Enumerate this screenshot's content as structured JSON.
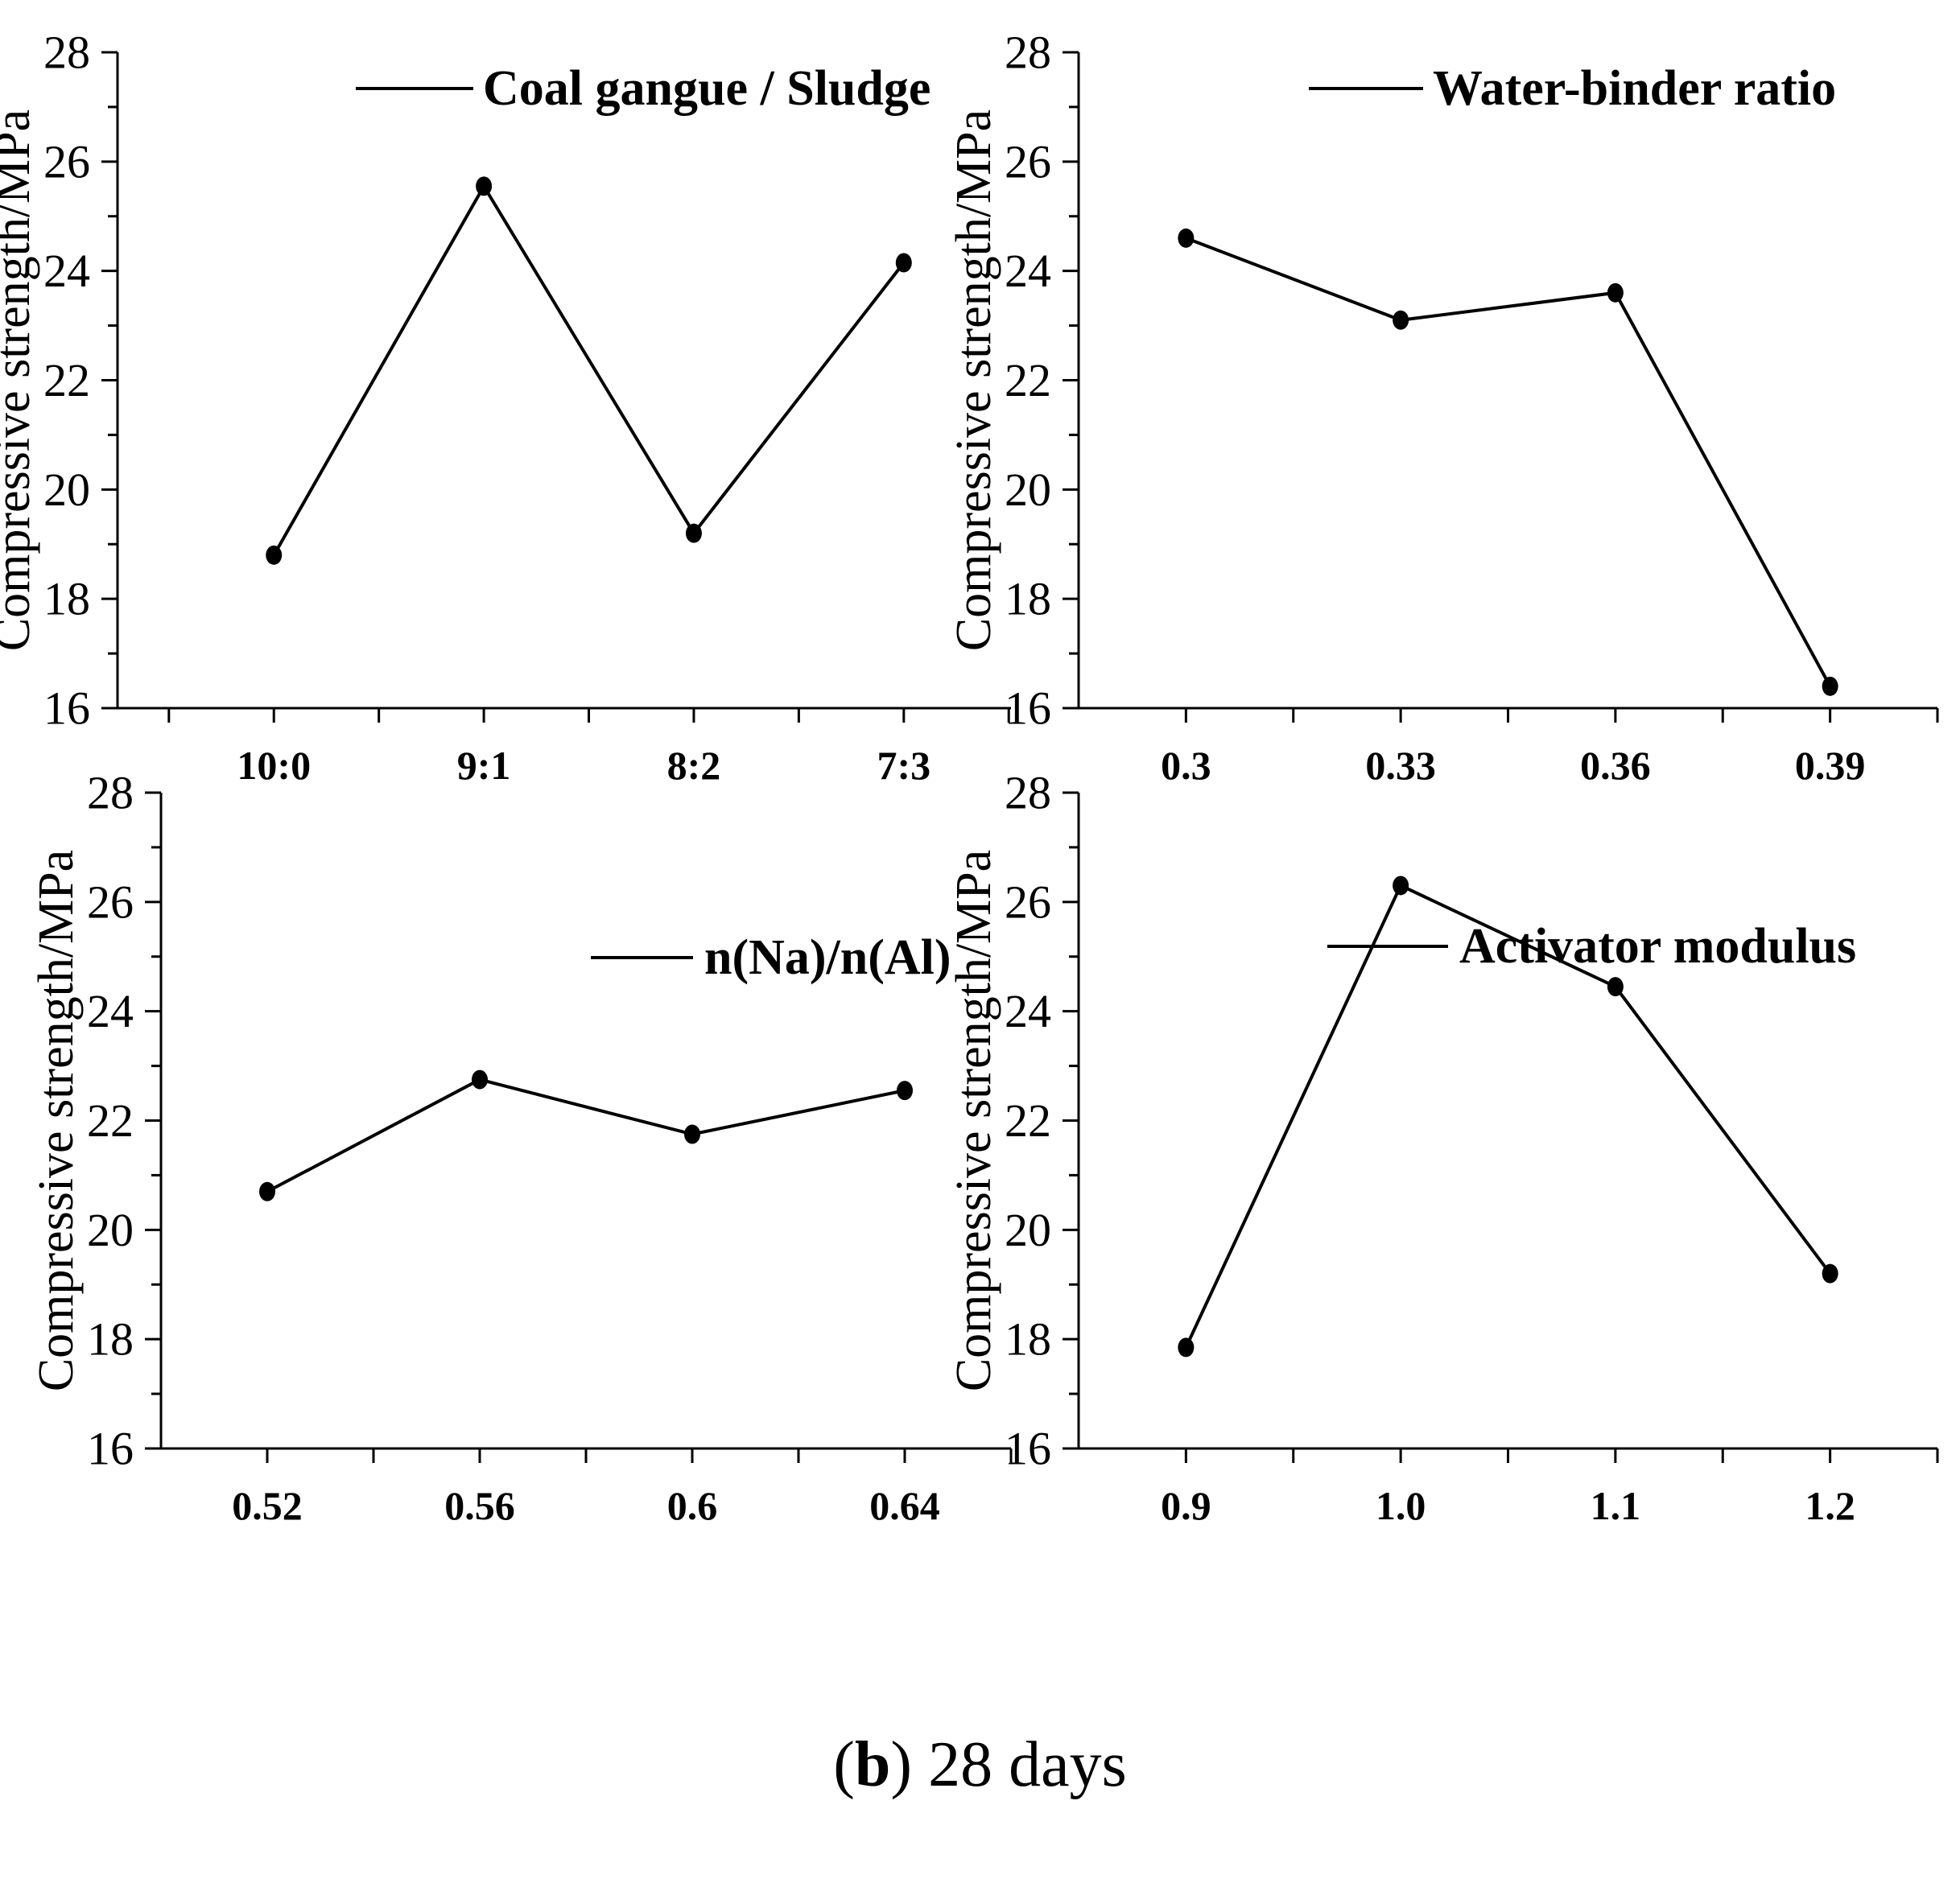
{
  "caption": {
    "prefix": "(",
    "bold": "b",
    "rest": ") 28 days"
  },
  "colors": {
    "foreground": "#000000",
    "background": "#ffffff"
  },
  "chart_data": [
    {
      "type": "line",
      "slug": "coal-gangue-sludge",
      "legend": "Coal gangue / Sludge",
      "categories": [
        "10:0",
        "9:1",
        "8:2",
        "7:3"
      ],
      "values": [
        18.8,
        25.55,
        19.2,
        24.15
      ],
      "ylabel": "Compressive strength/MPa",
      "ylim": [
        16,
        28
      ],
      "ytick_step": 2,
      "ytick_minor_step": 1,
      "legend_position": "inside-top",
      "marker": "filled-circle",
      "series_color": "#000000",
      "grid": false
    },
    {
      "type": "line",
      "slug": "water-binder-ratio",
      "legend": "Water-binder ratio",
      "categories": [
        "0.3",
        "0.33",
        "0.36",
        "0.39"
      ],
      "values": [
        24.6,
        23.1,
        23.6,
        16.4
      ],
      "ylabel": "Compressive strength/MPa",
      "ylim": [
        16,
        28
      ],
      "ytick_step": 2,
      "ytick_minor_step": 1,
      "legend_position": "inside-top",
      "marker": "filled-circle",
      "series_color": "#000000",
      "grid": false
    },
    {
      "type": "line",
      "slug": "na-al-ratio",
      "legend": "n(Na)/n(Al)",
      "categories": [
        "0.52",
        "0.56",
        "0.6",
        "0.64"
      ],
      "values": [
        20.7,
        22.75,
        21.75,
        22.55
      ],
      "ylabel": "Compressive strength/MPa",
      "ylim": [
        16,
        28
      ],
      "ytick_step": 2,
      "ytick_minor_step": 1,
      "legend_position": "inside-top",
      "marker": "filled-circle",
      "series_color": "#000000",
      "grid": false
    },
    {
      "type": "line",
      "slug": "activator-modulus",
      "legend": "Activator modulus",
      "categories": [
        "0.9",
        "1.0",
        "1.1",
        "1.2"
      ],
      "values": [
        17.85,
        26.3,
        24.45,
        19.2
      ],
      "ylabel": "Compressive strength/MPa",
      "ylim": [
        16,
        28
      ],
      "ytick_step": 2,
      "ytick_minor_step": 1,
      "legend_position": "inside-top",
      "marker": "filled-circle",
      "series_color": "#000000",
      "grid": false
    }
  ]
}
